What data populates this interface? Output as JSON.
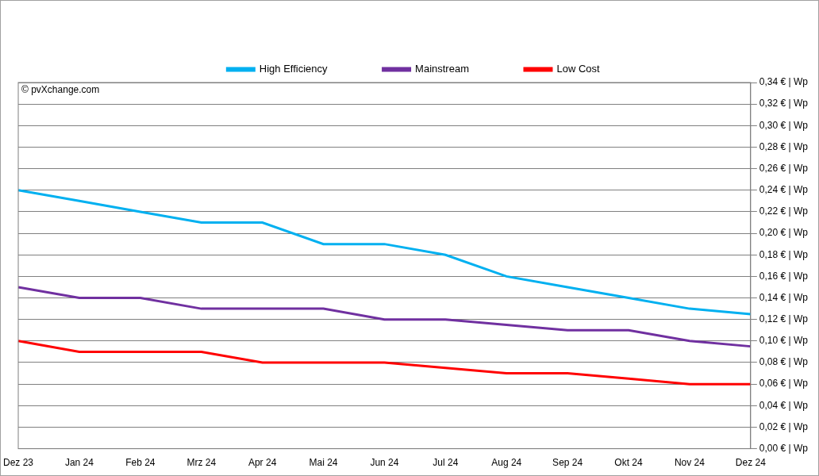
{
  "chart_data": {
    "type": "line",
    "annotation": "© pvXchange.com",
    "categories": [
      "Dez 23",
      "Jan 24",
      "Feb 24",
      "Mrz 24",
      "Apr 24",
      "Mai 24",
      "Jun 24",
      "Jul 24",
      "Aug 24",
      "Sep 24",
      "Okt 24",
      "Nov 24",
      "Dez 24"
    ],
    "series": [
      {
        "name": "High Efficiency",
        "color": "#00b0f0",
        "values": [
          0.24,
          0.23,
          0.22,
          0.21,
          0.21,
          0.19,
          0.19,
          0.18,
          0.16,
          0.15,
          0.14,
          0.13,
          0.125
        ]
      },
      {
        "name": "Mainstream",
        "color": "#7030a0",
        "values": [
          0.15,
          0.14,
          0.14,
          0.13,
          0.13,
          0.13,
          0.12,
          0.12,
          0.115,
          0.11,
          0.11,
          0.1,
          0.095
        ]
      },
      {
        "name": "Low Cost",
        "color": "#ff0000",
        "values": [
          0.1,
          0.09,
          0.09,
          0.09,
          0.08,
          0.08,
          0.08,
          0.075,
          0.07,
          0.07,
          0.065,
          0.06,
          0.06
        ]
      }
    ],
    "ylim": [
      0,
      0.34
    ],
    "yticks": [
      {
        "value": 0,
        "label": "0,00 € | Wp"
      },
      {
        "value": 0.02,
        "label": "0,02 € | Wp"
      },
      {
        "value": 0.04,
        "label": "0,04 € | Wp"
      },
      {
        "value": 0.06,
        "label": "0,06 € | Wp"
      },
      {
        "value": 0.08,
        "label": "0,08 € | Wp"
      },
      {
        "value": 0.1,
        "label": "0,10 € | Wp"
      },
      {
        "value": 0.12,
        "label": "0,12 € | Wp"
      },
      {
        "value": 0.14,
        "label": "0,14 € | Wp"
      },
      {
        "value": 0.16,
        "label": "0,16 € | Wp"
      },
      {
        "value": 0.18,
        "label": "0,18 € | Wp"
      },
      {
        "value": 0.2,
        "label": "0,20 € | Wp"
      },
      {
        "value": 0.22,
        "label": "0,22 € | Wp"
      },
      {
        "value": 0.24,
        "label": "0,24 € | Wp"
      },
      {
        "value": 0.26,
        "label": "0,26 € | Wp"
      },
      {
        "value": 0.28,
        "label": "0,28 € | Wp"
      },
      {
        "value": 0.3,
        "label": "0,30 € | Wp"
      },
      {
        "value": 0.32,
        "label": "0,32 € | Wp"
      },
      {
        "value": 0.34,
        "label": "0,34 € | Wp"
      }
    ],
    "grid": true,
    "legend": "top"
  }
}
